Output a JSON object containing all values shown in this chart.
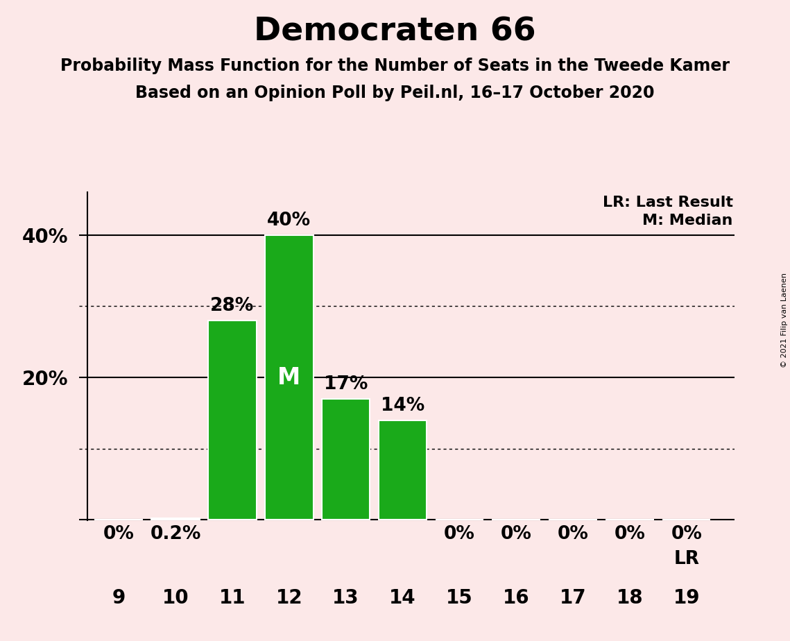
{
  "title": "Democraten 66",
  "subtitle1": "Probability Mass Function for the Number of Seats in the Tweede Kamer",
  "subtitle2": "Based on an Opinion Poll by Peil.nl, 16–17 October 2020",
  "copyright": "© 2021 Filip van Laenen",
  "seats": [
    9,
    10,
    11,
    12,
    13,
    14,
    15,
    16,
    17,
    18,
    19
  ],
  "values": [
    0.0,
    0.2,
    28.0,
    40.0,
    17.0,
    14.0,
    0.0,
    0.0,
    0.0,
    0.0,
    0.0
  ],
  "labels": [
    "0%",
    "0.2%",
    "28%",
    "40%",
    "17%",
    "14%",
    "0%",
    "0%",
    "0%",
    "0%",
    "0%"
  ],
  "bar_color": "#1aaa1a",
  "background_color": "#fce8e8",
  "median_seat": 12,
  "last_result_seat": 19,
  "dotted_lines": [
    10.0,
    30.0
  ],
  "solid_lines": [
    20.0,
    40.0
  ],
  "lr_annotation": "LR: Last Result",
  "m_annotation": "M: Median",
  "title_fontsize": 34,
  "subtitle_fontsize": 17,
  "axis_fontsize": 20,
  "bar_label_fontsize": 19,
  "legend_fontsize": 16,
  "median_label": "M",
  "copyright_fontsize": 8
}
